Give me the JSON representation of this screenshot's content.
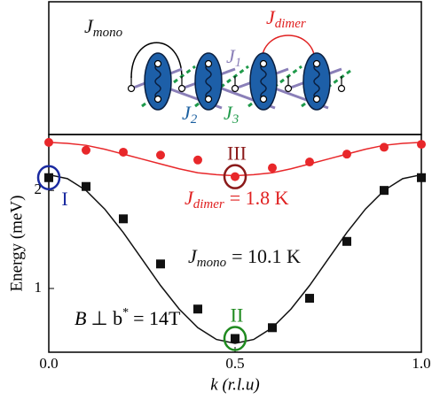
{
  "schematic": {
    "labels": [
      {
        "symbol": "J",
        "subscript": "mono",
        "color": "#111111"
      },
      {
        "symbol": "J",
        "subscript": "dimer",
        "color": "#e02020"
      },
      {
        "symbol": "J",
        "subscript": "1",
        "color": "#8a7fb8"
      },
      {
        "symbol": "J",
        "subscript": "2",
        "color": "#1a5fa0"
      },
      {
        "symbol": "J",
        "subscript": "3",
        "color": "#1f9a4a"
      }
    ]
  },
  "chart_data": {
    "type": "scatter",
    "xlabel": "k (r.l.u)",
    "ylabel": "Energy (meV)",
    "x": [
      0,
      0.1,
      0.2,
      0.3,
      0.4,
      0.5,
      0.6,
      0.7,
      0.8,
      0.9,
      1.0
    ],
    "series": [
      {
        "marker": "circle",
        "color": "#e8272a",
        "values": [
          2.49,
          2.41,
          2.39,
          2.36,
          2.31,
          2.14,
          2.23,
          2.29,
          2.37,
          2.44,
          2.47
        ]
      },
      {
        "marker": "square",
        "color": "#111111",
        "values": [
          2.13,
          2.04,
          1.71,
          1.25,
          0.79,
          0.49,
          0.6,
          0.9,
          1.48,
          2.0,
          2.13
        ]
      }
    ],
    "fit_x": [
      0,
      0.05,
      0.1,
      0.15,
      0.2,
      0.25,
      0.3,
      0.35,
      0.4,
      0.45,
      0.5,
      0.55,
      0.6,
      0.65,
      0.7,
      0.75,
      0.8,
      0.85,
      0.9,
      0.95,
      1.0
    ],
    "fits": [
      {
        "color": "#e8272a",
        "values": [
          2.49,
          2.48,
          2.46,
          2.42,
          2.37,
          2.32,
          2.27,
          2.22,
          2.18,
          2.16,
          2.15,
          2.16,
          2.18,
          2.22,
          2.27,
          2.32,
          2.37,
          2.42,
          2.46,
          2.48,
          2.49
        ]
      },
      {
        "color": "#111111",
        "values": [
          2.16,
          2.12,
          2.0,
          1.81,
          1.57,
          1.3,
          1.03,
          0.79,
          0.6,
          0.48,
          0.44,
          0.48,
          0.6,
          0.79,
          1.03,
          1.3,
          1.57,
          1.81,
          2.0,
          2.12,
          2.16
        ]
      }
    ],
    "xlim": [
      0,
      1.0
    ],
    "ylim": [
      0.35,
      2.57
    ],
    "xticks": [
      {
        "value": 0,
        "label": "0.0"
      },
      {
        "value": 0.5,
        "label": "0.5"
      },
      {
        "value": 1.0,
        "label": "1.0"
      }
    ],
    "yticks": [
      1,
      2
    ],
    "annotations": [
      {
        "text": "I",
        "color": "#1a2aa0",
        "x": 0,
        "y": 2.13
      },
      {
        "text": "III",
        "color": "#8b1a1a",
        "x": 0.5,
        "y": 2.14
      },
      {
        "text": "II",
        "color": "#1f8a1f",
        "x": 0.5,
        "y": 0.49
      }
    ],
    "couplings": [
      {
        "symbol": "J",
        "subscript": "dimer",
        "text": "= 1.8 K",
        "color": "#e02020"
      },
      {
        "symbol": "J",
        "subscript": "mono",
        "text": "= 10.1 K",
        "color": "#111111"
      }
    ],
    "field_label": {
      "symbol": "B",
      "text": "⊥ b",
      "superscript": "*",
      "rest": "= 14T"
    }
  }
}
